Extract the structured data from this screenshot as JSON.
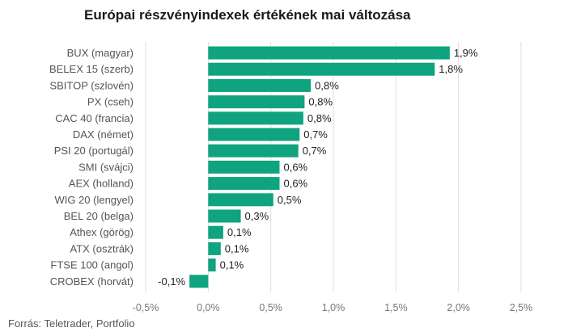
{
  "chart_data": {
    "type": "bar",
    "orientation": "horizontal",
    "title": "Európai részvényindexek értékének mai változása",
    "categories": [
      "BUX (magyar)",
      "BELEX 15 (szerb)",
      "SBITOP (szlovén)",
      "PX (cseh)",
      "CAC 40 (francia)",
      "DAX (német)",
      "PSI 20 (portugál)",
      "SMI (svájci)",
      "AEX (holland)",
      "WIG 20 (lengyel)",
      "BEL 20 (belga)",
      "Athex (görög)",
      "ATX (osztrák)",
      "FTSE 100 (angol)",
      "CROBEX (horvát)"
    ],
    "values": [
      1.93,
      1.81,
      0.82,
      0.77,
      0.76,
      0.73,
      0.72,
      0.57,
      0.57,
      0.52,
      0.26,
      0.12,
      0.1,
      0.06,
      -0.15
    ],
    "value_labels": [
      "1,9%",
      "1,8%",
      "0,8%",
      "0,8%",
      "0,8%",
      "0,7%",
      "0,7%",
      "0,6%",
      "0,6%",
      "0,5%",
      "0,3%",
      "0,1%",
      "0,1%",
      "0,1%",
      "-0,1%"
    ],
    "xlim": [
      -0.5,
      2.5
    ],
    "xticks": [
      -0.5,
      0,
      0.5,
      1,
      1.5,
      2,
      2.5
    ],
    "xtick_labels": [
      "-0,5%",
      "0,0%",
      "0,5%",
      "1,0%",
      "1,5%",
      "2,0%",
      "2,5%"
    ],
    "grid": true,
    "bar_color": "#0fa37f",
    "grid_color": "#dddddd",
    "xlabel": "",
    "ylabel": ""
  },
  "source": "Forrás: Teletrader, Portfolio"
}
